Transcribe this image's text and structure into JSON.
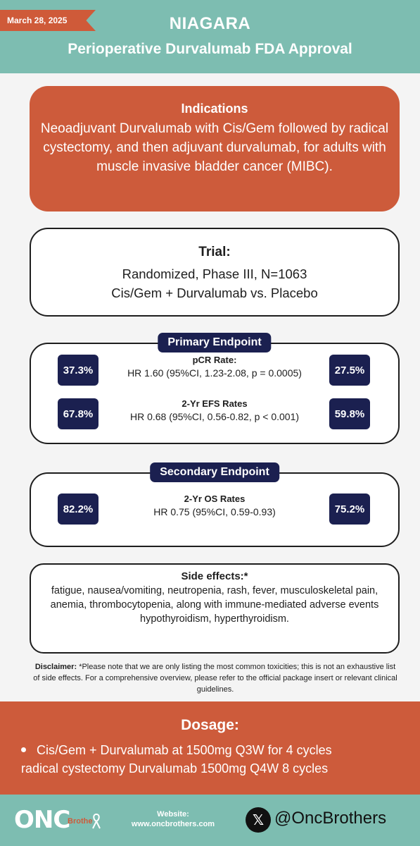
{
  "header": {
    "date": "March 28, 2025",
    "title": "NIAGARA",
    "subtitle": "Perioperative Durvalumab FDA Approval"
  },
  "indications": {
    "title": "Indications",
    "text": "Neoadjuvant Durvalumab with Cis/Gem followed by radical cystectomy, and then adjuvant durvalumab, for adults with muscle invasive bladder cancer (MIBC)."
  },
  "trial": {
    "title": "Trial:",
    "line1": "Randomized, Phase III, N=1063",
    "line2": "Cis/Gem + Durvalumab vs. Placebo"
  },
  "primary": {
    "label": "Primary Endpoint",
    "rows": [
      {
        "title": "pCR Rate:",
        "hr": "HR 1.60 (95%CI, 1.23-2.08, p = 0.0005)",
        "left": "37.3%",
        "right": "27.5%"
      },
      {
        "title": "2-Yr EFS Rates",
        "hr": "HR 0.68 (95%CI, 0.56-0.82, p < 0.001)",
        "left": "67.8%",
        "right": "59.8%"
      }
    ]
  },
  "secondary": {
    "label": "Secondary Endpoint",
    "rows": [
      {
        "title": "2-Yr OS Rates",
        "hr": "HR 0.75 (95%CI, 0.59-0.93)",
        "left": "82.2%",
        "right": "75.2%"
      }
    ]
  },
  "side_effects": {
    "title": "Side effects:*",
    "text": "fatigue, nausea/vomiting, neutropenia, rash, fever, musculoskeletal pain, anemia, thrombocytopenia, along with immune-mediated adverse events hypothyroidism, hyperthyroidism."
  },
  "disclaimer": {
    "label": "Disclaimer:",
    "text": "*Please note that we are only listing the most common toxicities; this is not an exhaustive list of side effects. For a comprehensive overview, please refer to the official package insert or relevant clinical guidelines."
  },
  "dosage": {
    "title": "Dosage:",
    "line1": "Cis/Gem + Durvalumab at 1500mg Q3W for 4 cycles",
    "line2": "radical cystectomy  Durvalumab 1500mg Q4W 8 cycles"
  },
  "footer": {
    "logo": "ONC",
    "logo_small": "Brothe",
    "website_label": "Website:",
    "website": "www.oncbrothers.com",
    "x_glyph": "𝕏",
    "handle": "@OncBrothers"
  },
  "colors": {
    "teal": "#7dbdb1",
    "orange": "#cd5b3b",
    "navy": "#1b2050"
  }
}
